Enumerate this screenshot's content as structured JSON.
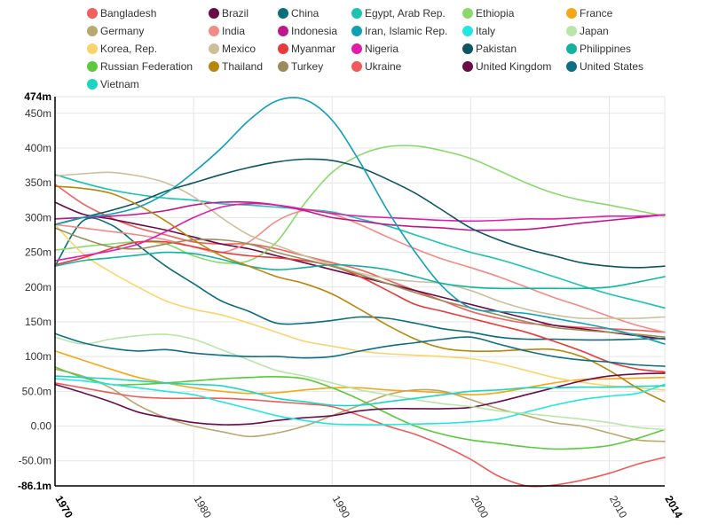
{
  "chart_data": {
    "type": "line",
    "title": "",
    "xlabel": "",
    "ylabel": "",
    "xlim": [
      1970,
      2014
    ],
    "ylim": [
      -86.1,
      474
    ],
    "grid": true,
    "legend_position": "top",
    "x_ticks": [
      {
        "value": 1970,
        "label": "1970",
        "bold": true
      },
      {
        "value": 1980,
        "label": "1980",
        "bold": false
      },
      {
        "value": 1990,
        "label": "1990",
        "bold": false
      },
      {
        "value": 2000,
        "label": "2000",
        "bold": false
      },
      {
        "value": 2010,
        "label": "2010",
        "bold": false
      },
      {
        "value": 2014,
        "label": "2014",
        "bold": true
      }
    ],
    "y_ticks": [
      {
        "value": 474,
        "label": "474m",
        "bold": true
      },
      {
        "value": 450,
        "label": "450m",
        "bold": false
      },
      {
        "value": 400,
        "label": "400m",
        "bold": false
      },
      {
        "value": 350,
        "label": "350m",
        "bold": false
      },
      {
        "value": 300,
        "label": "300m",
        "bold": false
      },
      {
        "value": 250,
        "label": "250m",
        "bold": false
      },
      {
        "value": 200,
        "label": "200m",
        "bold": false
      },
      {
        "value": 150,
        "label": "150m",
        "bold": false
      },
      {
        "value": 100,
        "label": "100m",
        "bold": false
      },
      {
        "value": 50,
        "label": "50.0m",
        "bold": false
      },
      {
        "value": 0,
        "label": "0.00",
        "bold": false
      },
      {
        "value": -50,
        "label": "-50.0m",
        "bold": false
      },
      {
        "value": -86.1,
        "label": "-86.1m",
        "bold": true
      }
    ],
    "x": [
      1970,
      1972,
      1974,
      1976,
      1978,
      1980,
      1982,
      1984,
      1986,
      1988,
      1990,
      1992,
      1994,
      1996,
      1998,
      2000,
      2002,
      2004,
      2006,
      2008,
      2010,
      2012,
      2014
    ],
    "series": [
      {
        "name": "Bangladesh",
        "color": "#f0605d",
        "values": [
          348,
          320,
          300,
          285,
          275,
          265,
          262,
          262,
          255,
          245,
          235,
          225,
          210,
          195,
          180,
          165,
          155,
          148,
          145,
          142,
          140,
          138,
          135
        ]
      },
      {
        "name": "Brazil",
        "color": "#6b0b45",
        "values": [
          322,
          305,
          298,
          290,
          282,
          272,
          262,
          255,
          245,
          235,
          225,
          215,
          205,
          195,
          185,
          175,
          165,
          155,
          145,
          140,
          135,
          130,
          125
        ]
      },
      {
        "name": "China",
        "color": "#0b6e7a",
        "values": [
          230,
          295,
          290,
          260,
          230,
          205,
          180,
          165,
          148,
          148,
          152,
          157,
          155,
          148,
          140,
          135,
          128,
          125,
          125,
          124,
          124,
          125,
          126
        ]
      },
      {
        "name": "Egypt, Arab Rep.",
        "color": "#1bc3b0",
        "values": [
          362,
          350,
          340,
          333,
          328,
          325,
          320,
          318,
          315,
          312,
          308,
          298,
          288,
          275,
          262,
          250,
          240,
          228,
          215,
          202,
          190,
          180,
          170
        ]
      },
      {
        "name": "Ethiopia",
        "color": "#8ada6b",
        "values": [
          253,
          258,
          262,
          265,
          262,
          245,
          235,
          238,
          265,
          320,
          365,
          390,
          402,
          403,
          396,
          385,
          368,
          350,
          335,
          325,
          318,
          310,
          302
        ]
      },
      {
        "name": "France",
        "color": "#f5a817",
        "values": [
          108,
          95,
          82,
          70,
          62,
          55,
          50,
          47,
          48,
          52,
          55,
          55,
          52,
          50,
          48,
          45,
          48,
          55,
          62,
          67,
          68,
          69,
          70
        ]
      },
      {
        "name": "Germany",
        "color": "#b9a86f",
        "values": [
          82,
          72,
          55,
          30,
          12,
          0,
          -8,
          -15,
          -10,
          0,
          15,
          30,
          45,
          52,
          50,
          38,
          25,
          15,
          5,
          0,
          -10,
          -20,
          -22
        ]
      },
      {
        "name": "India",
        "color": "#f28a85",
        "values": [
          290,
          285,
          280,
          275,
          268,
          258,
          250,
          265,
          295,
          310,
          305,
          290,
          272,
          255,
          240,
          228,
          215,
          200,
          185,
          172,
          158,
          145,
          135
        ]
      },
      {
        "name": "Indonesia",
        "color": "#c0168b",
        "values": [
          298,
          300,
          302,
          305,
          310,
          318,
          322,
          322,
          318,
          310,
          300,
          295,
          290,
          287,
          285,
          282,
          282,
          283,
          287,
          292,
          296,
          300,
          304
        ]
      },
      {
        "name": "Korea, Rep.",
        "color": "#f9d46b",
        "values": [
          290,
          248,
          222,
          200,
          180,
          168,
          160,
          148,
          135,
          122,
          115,
          108,
          104,
          102,
          100,
          97,
          90,
          80,
          70,
          63,
          58,
          55,
          52
        ]
      },
      {
        "name": "Mexico",
        "color": "#ccbf99",
        "values": [
          360,
          363,
          365,
          360,
          350,
          330,
          300,
          275,
          260,
          245,
          232,
          220,
          212,
          208,
          205,
          195,
          180,
          168,
          160,
          155,
          155,
          155,
          157
        ]
      },
      {
        "name": "Myanmar",
        "color": "#e83a3a",
        "values": [
          232,
          242,
          255,
          265,
          265,
          258,
          250,
          245,
          242,
          238,
          230,
          215,
          195,
          175,
          165,
          155,
          145,
          135,
          122,
          108,
          92,
          82,
          78
        ]
      },
      {
        "name": "Nigeria",
        "color": "#e11cab",
        "values": [
          238,
          245,
          252,
          262,
          280,
          300,
          315,
          320,
          318,
          312,
          306,
          302,
          300,
          298,
          296,
          295,
          296,
          298,
          298,
          300,
          302,
          302,
          304
        ]
      },
      {
        "name": "Pakistan",
        "color": "#0d5561",
        "values": [
          290,
          300,
          310,
          322,
          338,
          350,
          362,
          372,
          380,
          384,
          382,
          372,
          355,
          335,
          310,
          285,
          268,
          255,
          245,
          235,
          230,
          228,
          230
        ]
      },
      {
        "name": "Philippines",
        "color": "#13b3a0",
        "values": [
          230,
          238,
          242,
          246,
          250,
          248,
          240,
          230,
          225,
          228,
          232,
          230,
          225,
          215,
          205,
          200,
          198,
          198,
          198,
          198,
          200,
          207,
          215
        ]
      },
      {
        "name": "Russian Federation",
        "color": "#5cc83d",
        "values": [
          85,
          70,
          60,
          60,
          62,
          65,
          68,
          70,
          71,
          68,
          55,
          38,
          18,
          0,
          -12,
          -20,
          -25,
          -30,
          -33,
          -32,
          -28,
          -18,
          -5
        ]
      },
      {
        "name": "Thailand",
        "color": "#b8860b",
        "values": [
          345,
          342,
          335,
          318,
          295,
          268,
          245,
          230,
          215,
          205,
          190,
          168,
          145,
          125,
          112,
          108,
          108,
          110,
          110,
          100,
          80,
          55,
          35
        ]
      },
      {
        "name": "Turkey",
        "color": "#9b8c5a",
        "values": [
          285,
          270,
          258,
          255,
          262,
          268,
          268,
          262,
          250,
          240,
          230,
          218,
          205,
          192,
          180,
          170,
          160,
          150,
          142,
          138,
          135,
          132,
          128
        ]
      },
      {
        "name": "Ukraine",
        "color": "#f05a5a",
        "values": [
          62,
          55,
          48,
          42,
          40,
          40,
          40,
          38,
          35,
          32,
          28,
          15,
          0,
          -12,
          -28,
          -48,
          -72,
          -86,
          -85,
          -78,
          -68,
          -55,
          -45
        ]
      },
      {
        "name": "United Kingdom",
        "color": "#6a0d4a",
        "values": [
          60,
          48,
          35,
          20,
          12,
          5,
          2,
          3,
          8,
          12,
          15,
          22,
          25,
          25,
          25,
          27,
          35,
          45,
          55,
          65,
          72,
          75,
          76
        ]
      },
      {
        "name": "Italy",
        "color": "#22e6df",
        "values": [
          68,
          65,
          60,
          55,
          50,
          45,
          35,
          25,
          15,
          8,
          3,
          2,
          2,
          3,
          4,
          6,
          10,
          20,
          30,
          38,
          43,
          47,
          60
        ]
      },
      {
        "name": "Japan",
        "color": "#b8e6a8",
        "values": [
          128,
          118,
          125,
          130,
          132,
          125,
          110,
          95,
          80,
          72,
          62,
          52,
          45,
          38,
          32,
          28,
          22,
          18,
          14,
          10,
          5,
          -2,
          -5
        ]
      },
      {
        "name": "Iran, Islamic Rep.",
        "color": "#0fa0b4",
        "values": [
          290,
          300,
          305,
          315,
          335,
          365,
          400,
          440,
          468,
          470,
          440,
          380,
          310,
          250,
          200,
          170,
          165,
          162,
          155,
          148,
          140,
          130,
          118
        ]
      },
      {
        "name": "United States",
        "color": "#0f6f82",
        "values": [
          133,
          120,
          112,
          108,
          110,
          105,
          102,
          100,
          100,
          98,
          100,
          108,
          115,
          120,
          125,
          128,
          118,
          108,
          100,
          95,
          92,
          88,
          86
        ]
      },
      {
        "name": "Vietnam",
        "color": "#1dd6c0",
        "values": [
          72,
          70,
          68,
          65,
          62,
          60,
          58,
          50,
          40,
          35,
          30,
          30,
          35,
          40,
          45,
          50,
          52,
          55,
          55,
          56,
          56,
          57,
          58
        ]
      }
    ]
  },
  "legend": [
    {
      "name": "Bangladesh",
      "color": "#f0605d"
    },
    {
      "name": "Brazil",
      "color": "#6b0b45"
    },
    {
      "name": "China",
      "color": "#0b6e7a"
    },
    {
      "name": "Egypt, Arab Rep.",
      "color": "#1bc3b0"
    },
    {
      "name": "Ethiopia",
      "color": "#8ada6b"
    },
    {
      "name": "France",
      "color": "#f5a817"
    },
    {
      "name": "Germany",
      "color": "#b9a86f"
    },
    {
      "name": "India",
      "color": "#f28a85"
    },
    {
      "name": "Indonesia",
      "color": "#c0168b"
    },
    {
      "name": "Iran, Islamic Rep.",
      "color": "#0fa0b4"
    },
    {
      "name": "Italy",
      "color": "#22e6df"
    },
    {
      "name": "Japan",
      "color": "#b8e6a8"
    },
    {
      "name": "Korea, Rep.",
      "color": "#f9d46b"
    },
    {
      "name": "Mexico",
      "color": "#ccbf99"
    },
    {
      "name": "Myanmar",
      "color": "#e83a3a"
    },
    {
      "name": "Nigeria",
      "color": "#e11cab"
    },
    {
      "name": "Pakistan",
      "color": "#0d5561"
    },
    {
      "name": "Philippines",
      "color": "#13b3a0"
    },
    {
      "name": "Russian Federation",
      "color": "#5cc83d"
    },
    {
      "name": "Thailand",
      "color": "#b8860b"
    },
    {
      "name": "Turkey",
      "color": "#9b8c5a"
    },
    {
      "name": "Ukraine",
      "color": "#f05a5a"
    },
    {
      "name": "United Kingdom",
      "color": "#6a0d4a"
    },
    {
      "name": "United States",
      "color": "#0f6f82"
    },
    {
      "name": "Vietnam",
      "color": "#1dd6c0"
    }
  ]
}
